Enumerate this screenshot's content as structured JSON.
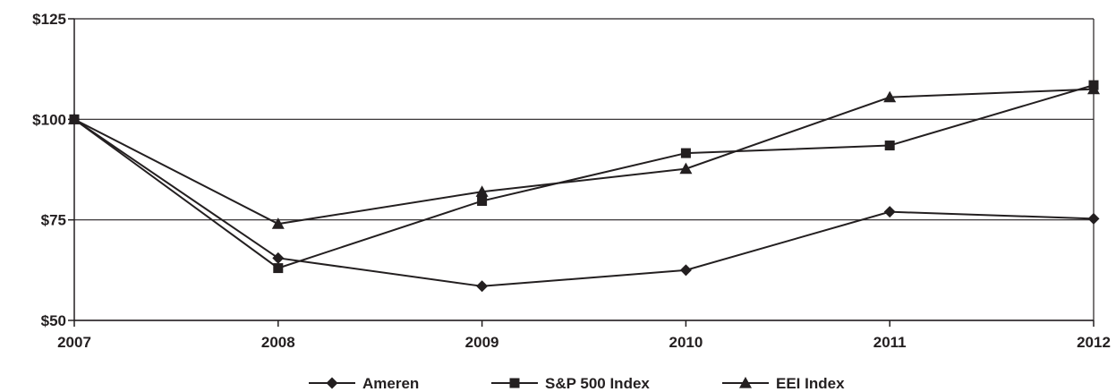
{
  "chart_data": {
    "type": "line",
    "title": "",
    "xlabel": "",
    "ylabel": "",
    "x": [
      "2007",
      "2008",
      "2009",
      "2010",
      "2011",
      "2012"
    ],
    "ylim": [
      50,
      125
    ],
    "y_ticks": [
      50,
      75,
      100,
      125
    ],
    "y_tick_labels": [
      "$50",
      "$75",
      "$100",
      "$125"
    ],
    "grid": "horizontal",
    "legend_position": "bottom",
    "series": [
      {
        "name": "Ameren",
        "marker": "diamond",
        "values": [
          100,
          65.5,
          58.5,
          62.5,
          77,
          75.3
        ]
      },
      {
        "name": "S&P 500 Index",
        "marker": "square",
        "values": [
          100,
          63,
          79.7,
          91.6,
          93.5,
          108.5
        ]
      },
      {
        "name": "EEI Index",
        "marker": "triangle",
        "values": [
          100,
          74,
          82,
          87.7,
          105.5,
          107.5
        ]
      }
    ],
    "colors": {
      "line": "#231f20",
      "grid": "#231f20"
    }
  }
}
